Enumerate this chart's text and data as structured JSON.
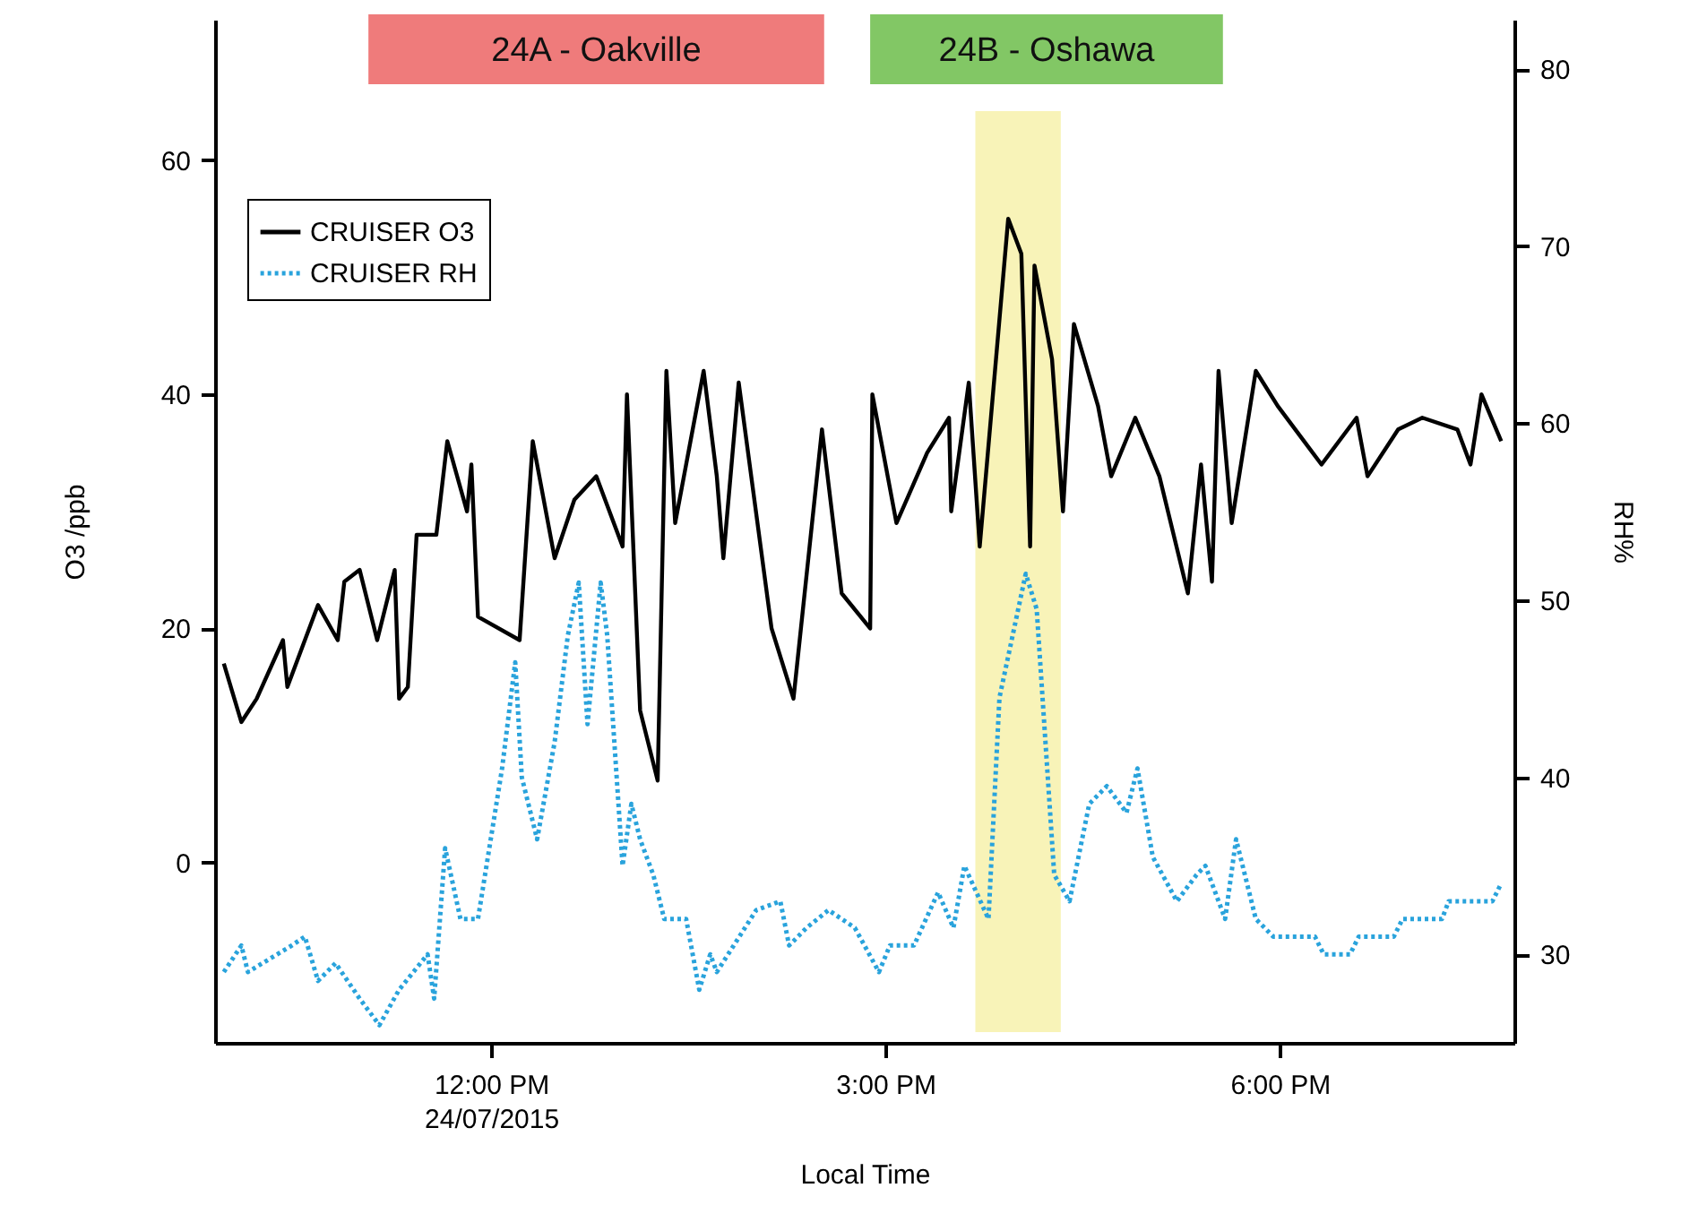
{
  "chart_data": {
    "type": "line",
    "xlabel": "Local Time",
    "ylabel": "O3 /ppb",
    "y2label": "RH%",
    "xlim": [
      "2015-07-24T09:54",
      "2015-07-24T19:47"
    ],
    "xticks": [
      {
        "value": "2015-07-24T12:00",
        "label": "12:00 PM\n24/07/2015"
      },
      {
        "value": "2015-07-24T15:00",
        "label": "3:00 PM"
      },
      {
        "value": "2015-07-24T18:00",
        "label": "6:00 PM"
      }
    ],
    "ylim": [
      -15.4,
      72
    ],
    "yticks": [
      0,
      20,
      40,
      60
    ],
    "y2lim": [
      25,
      82.8
    ],
    "y2ticks": [
      30,
      40,
      50,
      60,
      70,
      80
    ],
    "legend": "top left",
    "marker": "none",
    "grid": false,
    "bands": [
      {
        "axis": "x",
        "from": "2015-07-24T11:04",
        "to": "2015-07-24T14:32",
        "label": "24A - Oakville",
        "color": "#ef7b7b"
      },
      {
        "axis": "x",
        "from": "2015-07-24T14:53",
        "to": "2015-07-24T17:34",
        "label": "24B - Oshawa",
        "color": "#82c765"
      },
      {
        "axis": "x",
        "from": "2015-07-24T15:41",
        "to": "2015-07-24T16:20",
        "color": "#f8f3b8"
      }
    ],
    "series": [
      {
        "name": "CRUISER O3",
        "color": "#000000",
        "line_style": "solid",
        "x": [
          "2015-07-24T09:58",
          "2015-07-24T10:06",
          "2015-07-24T10:13",
          "2015-07-24T10:25",
          "2015-07-24T10:27",
          "2015-07-24T10:41",
          "2015-07-24T10:50",
          "2015-07-24T10:53",
          "2015-07-24T11:00",
          "2015-07-24T11:08",
          "2015-07-24T11:16",
          "2015-07-24T11:18",
          "2015-07-24T11:22",
          "2015-07-24T11:26",
          "2015-07-24T11:35",
          "2015-07-24T11:40",
          "2015-07-24T11:49",
          "2015-07-24T11:51",
          "2015-07-24T11:54",
          "2015-07-24T12:13",
          "2015-07-24T12:19",
          "2015-07-24T12:29",
          "2015-07-24T12:38",
          "2015-07-24T12:48",
          "2015-07-24T13:00",
          "2015-07-24T13:02",
          "2015-07-24T13:08",
          "2015-07-24T13:16",
          "2015-07-24T13:20",
          "2015-07-24T13:24",
          "2015-07-24T13:37",
          "2015-07-24T13:43",
          "2015-07-24T13:46",
          "2015-07-24T13:53",
          "2015-07-24T14:08",
          "2015-07-24T14:18",
          "2015-07-24T14:31",
          "2015-07-24T14:40",
          "2015-07-24T14:53",
          "2015-07-24T14:54",
          "2015-07-24T15:05",
          "2015-07-24T15:19",
          "2015-07-24T15:29",
          "2015-07-24T15:30",
          "2015-07-24T15:38",
          "2015-07-24T15:43",
          "2015-07-24T15:56",
          "2015-07-24T16:02",
          "2015-07-24T16:06",
          "2015-07-24T16:08",
          "2015-07-24T16:16",
          "2015-07-24T16:21",
          "2015-07-24T16:26",
          "2015-07-24T16:37",
          "2015-07-24T16:43",
          "2015-07-24T16:54",
          "2015-07-24T17:05",
          "2015-07-24T17:18",
          "2015-07-24T17:24",
          "2015-07-24T17:29",
          "2015-07-24T17:32",
          "2015-07-24T17:38",
          "2015-07-24T17:49",
          "2015-07-24T17:59",
          "2015-07-24T18:11",
          "2015-07-24T18:19",
          "2015-07-24T18:35",
          "2015-07-24T18:40",
          "2015-07-24T18:54",
          "2015-07-24T19:05",
          "2015-07-24T19:21",
          "2015-07-24T19:27",
          "2015-07-24T19:32",
          "2015-07-24T19:41"
        ],
        "values": [
          17,
          12,
          14,
          19,
          15,
          22,
          19,
          24,
          25,
          19,
          25,
          14,
          15,
          28,
          28,
          36,
          30,
          34,
          21,
          19,
          36,
          26,
          31,
          33,
          27,
          40,
          13,
          7,
          42,
          29,
          42,
          33,
          26,
          41,
          20,
          14,
          37,
          23,
          20,
          40,
          29,
          35,
          38,
          30,
          41,
          27,
          55,
          52,
          27,
          51,
          43,
          30,
          46,
          39,
          33,
          38,
          33,
          23,
          34,
          24,
          42,
          29,
          42,
          39,
          36,
          34,
          38,
          33,
          37,
          38,
          37,
          34,
          40,
          36
        ]
      },
      {
        "name": "CRUISER RH",
        "color": "#29a3dc",
        "line_style": "dotted",
        "axis": "y2",
        "x": [
          "2015-07-24T09:58",
          "2015-07-24T10:06",
          "2015-07-24T10:09",
          "2015-07-24T10:29",
          "2015-07-24T10:35",
          "2015-07-24T10:41",
          "2015-07-24T10:49",
          "2015-07-24T11:00",
          "2015-07-24T11:09",
          "2015-07-24T11:18",
          "2015-07-24T11:31",
          "2015-07-24T11:34",
          "2015-07-24T11:39",
          "2015-07-24T11:46",
          "2015-07-24T11:54",
          "2015-07-24T12:05",
          "2015-07-24T12:11",
          "2015-07-24T12:14",
          "2015-07-24T12:21",
          "2015-07-24T12:29",
          "2015-07-24T12:35",
          "2015-07-24T12:40",
          "2015-07-24T12:44",
          "2015-07-24T12:50",
          "2015-07-24T12:53",
          "2015-07-24T13:00",
          "2015-07-24T13:04",
          "2015-07-24T13:08",
          "2015-07-24T13:14",
          "2015-07-24T13:19",
          "2015-07-24T13:29",
          "2015-07-24T13:35",
          "2015-07-24T13:40",
          "2015-07-24T13:43",
          "2015-07-24T14:01",
          "2015-07-24T14:12",
          "2015-07-24T14:16",
          "2015-07-24T14:24",
          "2015-07-24T14:34",
          "2015-07-24T14:46",
          "2015-07-24T14:57",
          "2015-07-24T15:02",
          "2015-07-24T15:13",
          "2015-07-24T15:24",
          "2015-07-24T15:31",
          "2015-07-24T15:36",
          "2015-07-24T15:47",
          "2015-07-24T15:52",
          "2015-07-24T16:04",
          "2015-07-24T16:09",
          "2015-07-24T16:17",
          "2015-07-24T16:24",
          "2015-07-24T16:33",
          "2015-07-24T16:41",
          "2015-07-24T16:50",
          "2015-07-24T16:55",
          "2015-07-24T17:02",
          "2015-07-24T17:13",
          "2015-07-24T17:22",
          "2015-07-24T17:26",
          "2015-07-24T17:35",
          "2015-07-24T17:40",
          "2015-07-24T17:49",
          "2015-07-24T17:57",
          "2015-07-24T18:16",
          "2015-07-24T18:20",
          "2015-07-24T18:32",
          "2015-07-24T18:36",
          "2015-07-24T18:52",
          "2015-07-24T18:56",
          "2015-07-24T19:14",
          "2015-07-24T19:17",
          "2015-07-24T19:37",
          "2015-07-24T19:41"
        ],
        "values": [
          29,
          30.5,
          29,
          30.5,
          31,
          28.5,
          29.5,
          27.5,
          26,
          28,
          30,
          27.5,
          36,
          32,
          32,
          40.5,
          46.5,
          40,
          36.5,
          42,
          48,
          51,
          43,
          51,
          48,
          35,
          38.5,
          36.5,
          34.5,
          32,
          32,
          28,
          30,
          29,
          32.5,
          33,
          30.5,
          31.5,
          32.5,
          31.5,
          29,
          30.5,
          30.5,
          33.5,
          31.5,
          35,
          32,
          44.5,
          51.5,
          49.5,
          34.5,
          33,
          38.5,
          39.5,
          38,
          40.5,
          35.5,
          33,
          34.5,
          35,
          32,
          36.5,
          32,
          31,
          31,
          30,
          30,
          31,
          31,
          32,
          32,
          33,
          33,
          34
        ]
      }
    ]
  }
}
